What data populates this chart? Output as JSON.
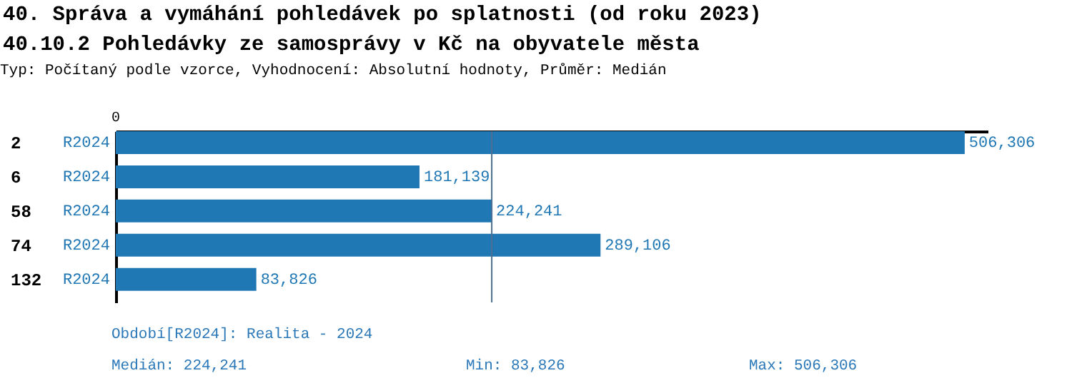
{
  "chart_data": {
    "type": "bar",
    "orientation": "horizontal",
    "title": "40. Správa a vymáhání pohledávek po splatnosti (od roku 2023)",
    "subtitle": "40.10.2 Pohledávky ze samosprávy v Kč na obyvatele města",
    "categories": [
      "2",
      "6",
      "58",
      "74",
      "132"
    ],
    "series": [
      {
        "name": "R2024",
        "color": "#1f77b4",
        "values": [
          506306,
          181139,
          224241,
          289106,
          83826
        ],
        "value_labels": [
          "506,306",
          "181,139",
          "224,241",
          "289,106",
          "83,826"
        ]
      }
    ],
    "xlim": [
      0,
      520000
    ],
    "grid": false,
    "ref_lines": [
      {
        "axis": "x",
        "value": 224241,
        "color": "#4d6f91"
      }
    ],
    "annotations": [
      "0",
      "Typ: Počítaný podle vzorce, Vyhodnocení: Absolutní hodnoty, Průměr: Medián",
      "Období[R2024]: Realita - 2024",
      "Medián: 224,241",
      "Min: 83,826",
      "Max: 506,306"
    ]
  }
}
